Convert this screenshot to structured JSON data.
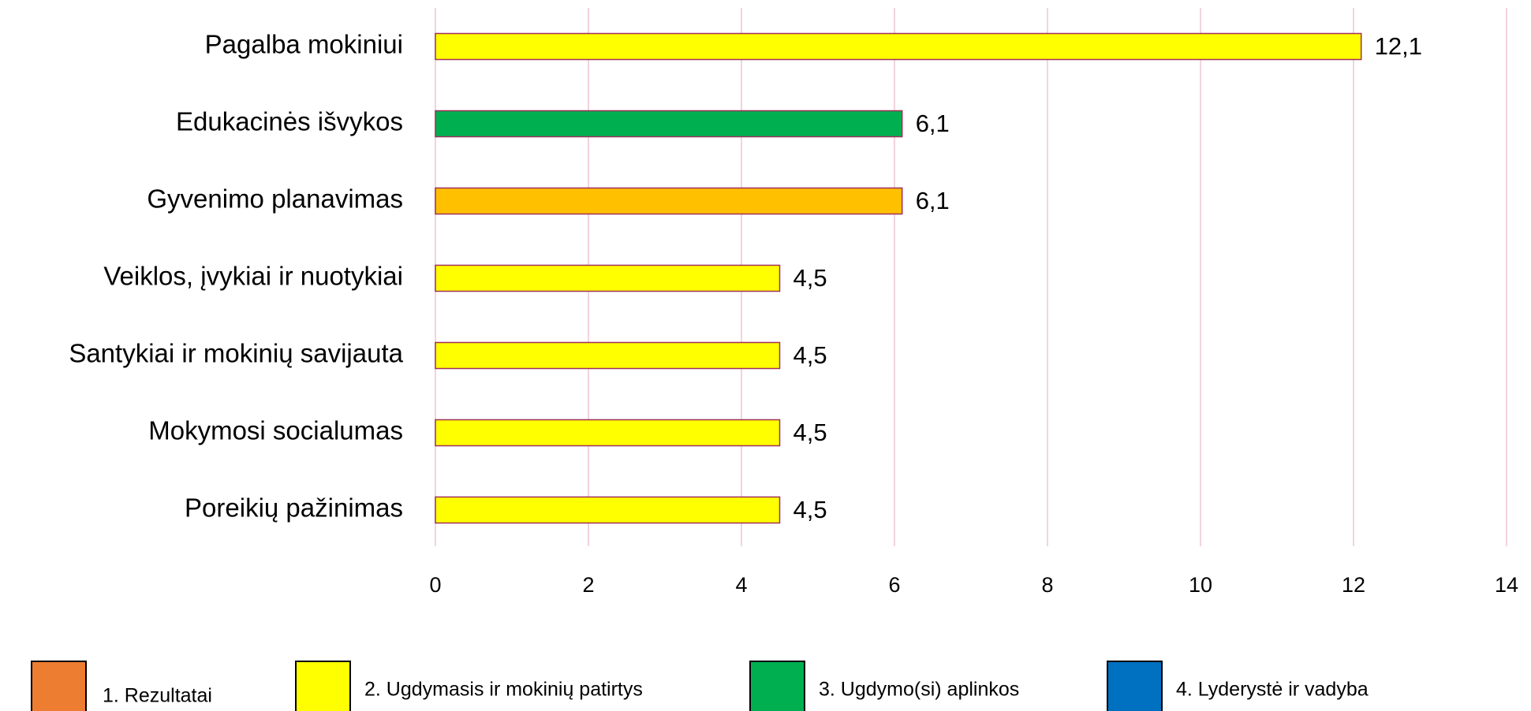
{
  "chart_data": {
    "type": "bar",
    "orientation": "horizontal",
    "categories": [
      "Pagalba mokiniui",
      "Edukacinės išvykos",
      "Gyvenimo planavimas",
      "Veiklos, įvykiai ir nuotykiai",
      "Santykiai ir mokinių savijauta",
      "Mokymosi socialumas",
      "Poreikių pažinimas"
    ],
    "values": [
      12.1,
      6.1,
      6.1,
      4.5,
      4.5,
      4.5,
      4.5
    ],
    "value_labels": [
      "12,1",
      "6,1",
      "6,1",
      "4,5",
      "4,5",
      "4,5",
      "4,5"
    ],
    "colors": [
      "#ffff00",
      "#00b050",
      "#ffc000",
      "#ffff00",
      "#ffff00",
      "#ffff00",
      "#ffff00"
    ],
    "xlim": [
      0,
      14
    ],
    "xticks": [
      0,
      2,
      4,
      6,
      8,
      10,
      12,
      14
    ],
    "grid": true,
    "legend": [
      {
        "label": "1. Rezultatai",
        "color": "#ed7d31"
      },
      {
        "label": "2. Ugdymasis ir mokinių patirtys",
        "color": "#ffff00"
      },
      {
        "label": "3. Ugdymo(si) aplinkos",
        "color": "#00b050"
      },
      {
        "label": "4. Lyderystė ir vadyba",
        "color": "#0070c0"
      }
    ],
    "legend_position": "bottom"
  }
}
